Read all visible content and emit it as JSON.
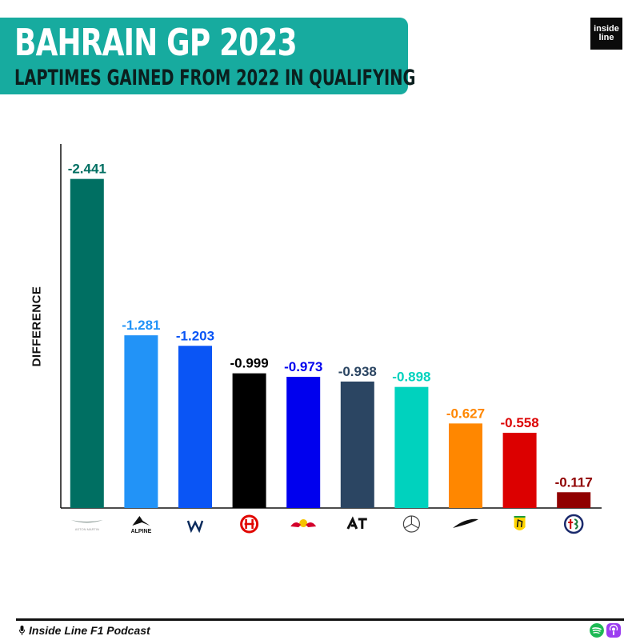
{
  "header": {
    "title": "BAHRAIN GP 2023",
    "subtitle": "LAPTIMES GAINED FROM 2022 IN QUALIFYING",
    "logo_line1": "inside",
    "logo_line2": "line"
  },
  "footer": {
    "podcast": "Inside Line F1 Podcast",
    "icons": [
      "microphone-icon",
      "spotify-icon",
      "apple-podcasts-icon"
    ]
  },
  "chart_data": {
    "type": "bar",
    "title": "BAHRAIN GP 2023",
    "subtitle": "LAPTIMES GAINED FROM 2022 IN QUALIFYING",
    "ylabel": "DIFFERENCE",
    "xlabel": "",
    "categories": [
      "aston-martin-logo",
      "alpine-logo",
      "williams-logo",
      "haas-logo",
      "red-bull-logo",
      "alphatauri-logo",
      "mercedes-logo",
      "mclaren-logo",
      "ferrari-logo",
      "alfa-romeo-logo"
    ],
    "values": [
      -2.441,
      -1.281,
      -1.203,
      -0.999,
      -0.973,
      -0.938,
      -0.898,
      -0.627,
      -0.558,
      -0.117
    ],
    "labels": [
      "-2.441",
      "-1.281",
      "-1.203",
      "-0.999",
      "-0.973",
      "-0.938",
      "-0.898",
      "-0.627",
      "-0.558",
      "-0.117"
    ],
    "colors": [
      "#006f62",
      "#2293f7",
      "#0a55f5",
      "#000000",
      "#0000ee",
      "#2b4562",
      "#00d2be",
      "#ff8700",
      "#dc0000",
      "#900000"
    ],
    "label_colors": [
      "#006f62",
      "#2293f7",
      "#0a55f5",
      "#000000",
      "#0000ee",
      "#2b4562",
      "#00d2be",
      "#ff8700",
      "#dc0000",
      "#900000"
    ],
    "logo_text": {
      "aston-martin-logo": "ASTON MARTIN",
      "alpine-logo": "ALPINE"
    },
    "ylim": [
      0,
      -2.7
    ],
    "grid": false,
    "legend": "none"
  }
}
